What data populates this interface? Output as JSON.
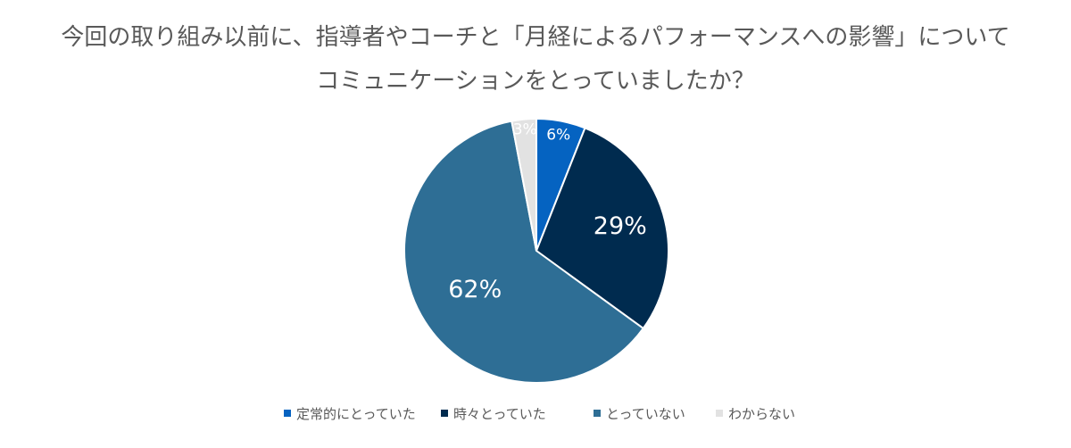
{
  "chart_data": {
    "type": "pie",
    "title": [
      "今回の取り組み以前に、指導者やコーチと「月経によるパフォーマンスへの影響」について",
      "コミュニケーションをとっていましたか？"
    ],
    "categories": [
      "定常的にとっていた",
      "時々とっていた",
      "とっていない",
      "わからない"
    ],
    "values": [
      6,
      29,
      62,
      3
    ],
    "labels": [
      "6%",
      "29%",
      "62%",
      "3%"
    ],
    "colors": [
      "#0563C1",
      "#002B4F",
      "#2E6E95",
      "#E2E2E2"
    ],
    "label_colors": [
      "#ffffff",
      "#ffffff",
      "#ffffff",
      "#bfbfbf"
    ],
    "legend_position": "bottom"
  }
}
